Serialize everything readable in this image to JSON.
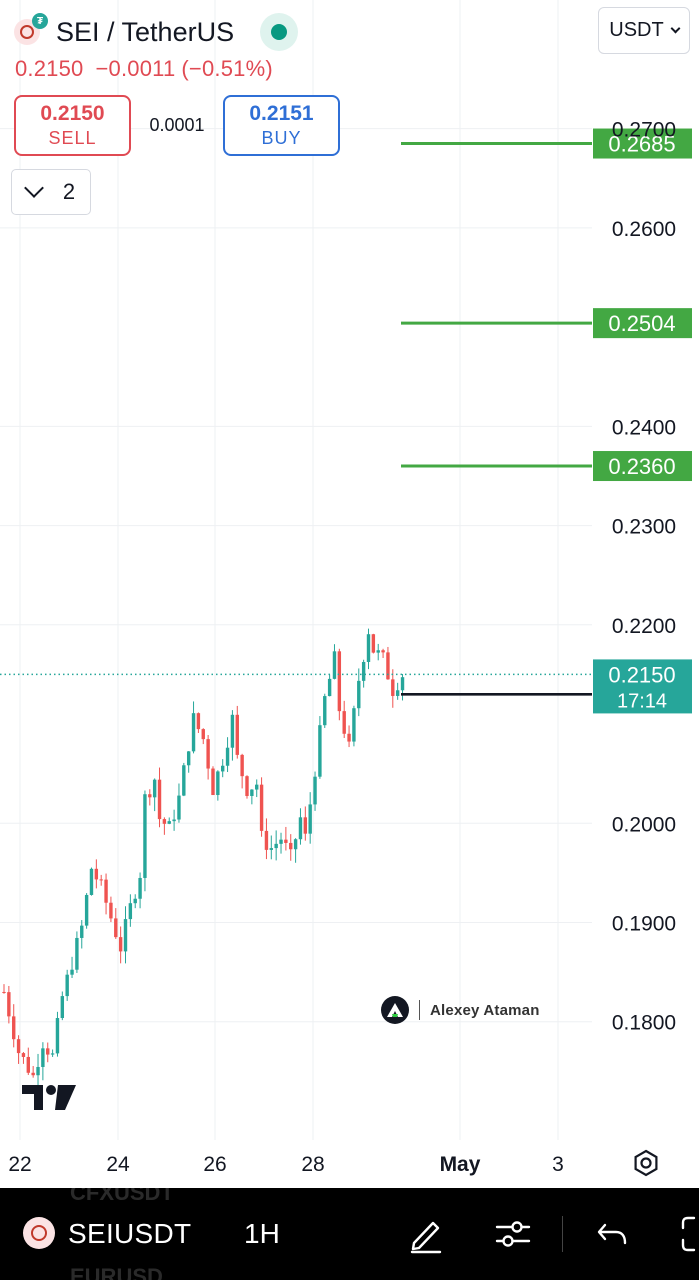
{
  "header": {
    "symbol_title": "SEI / TetherUS",
    "last_price": "0.2150",
    "change": "−0.0011",
    "change_pct": "(−0.51%)",
    "market_status": "open"
  },
  "trade": {
    "sell_price": "0.2150",
    "sell_label": "SELL",
    "spread": "0.0001",
    "buy_price": "0.2151",
    "buy_label": "BUY"
  },
  "indicators_toggle": {
    "count": "2"
  },
  "currency_selector": {
    "value": "USDT"
  },
  "watermark": {
    "author": "Alexey Ataman"
  },
  "chart_data": {
    "type": "candlestick",
    "x_tick_labels": [
      "22",
      "24",
      "26",
      "28",
      "May",
      "3"
    ],
    "y_tick_labels": [
      "0.2700",
      "0.2600",
      "0.2400",
      "0.2300",
      "0.2200",
      "0.2000",
      "0.1900",
      "0.1800"
    ],
    "ylim": [
      0.1705,
      0.2747
    ],
    "current_price_label": {
      "price": "0.2150",
      "countdown": "17:14"
    },
    "horizontal_levels": [
      {
        "price": 0.2685,
        "label": "0.2685",
        "color": "#43a843"
      },
      {
        "price": 0.2504,
        "label": "0.2504",
        "color": "#43a843"
      },
      {
        "price": 0.236,
        "label": "0.2360",
        "color": "#43a843"
      },
      {
        "price": 0.213,
        "label": "0.2130",
        "color": "#131722"
      }
    ],
    "colors": {
      "up": "#26a69a",
      "down": "#ef5350",
      "current": "#26a69a"
    },
    "price_path": [
      [
        0,
        0.183
      ],
      [
        3,
        0.177
      ],
      [
        6,
        0.1745
      ],
      [
        8,
        0.178
      ],
      [
        10,
        0.1765
      ],
      [
        12,
        0.1825
      ],
      [
        14,
        0.186
      ],
      [
        16,
        0.1895
      ],
      [
        18,
        0.1955
      ],
      [
        20,
        0.1935
      ],
      [
        22,
        0.1905
      ],
      [
        24,
        0.1875
      ],
      [
        26,
        0.1915
      ],
      [
        28,
        0.195
      ],
      [
        29,
        0.2025
      ],
      [
        31,
        0.2045
      ],
      [
        32,
        0.2005
      ],
      [
        34,
        0.1995
      ],
      [
        36,
        0.2025
      ],
      [
        38,
        0.208
      ],
      [
        39,
        0.2105
      ],
      [
        41,
        0.2085
      ],
      [
        43,
        0.2035
      ],
      [
        45,
        0.2065
      ],
      [
        47,
        0.2105
      ],
      [
        48,
        0.2065
      ],
      [
        50,
        0.2035
      ],
      [
        52,
        0.204
      ],
      [
        53,
        0.1985
      ],
      [
        55,
        0.1975
      ],
      [
        57,
        0.1985
      ],
      [
        59,
        0.1965
      ],
      [
        61,
        0.2005
      ],
      [
        62,
        0.1985
      ],
      [
        64,
        0.2055
      ],
      [
        66,
        0.2125
      ],
      [
        68,
        0.2165
      ],
      [
        69,
        0.2115
      ],
      [
        71,
        0.2075
      ],
      [
        73,
        0.2145
      ],
      [
        75,
        0.2195
      ],
      [
        76,
        0.2175
      ],
      [
        78,
        0.2165
      ],
      [
        80,
        0.2135
      ],
      [
        82,
        0.215
      ]
    ]
  },
  "bottom_bar": {
    "symbol": "SEIUSDT",
    "interval": "1H",
    "ghost_top": "CFXUSDT",
    "ghost_bottom": "EURUSD"
  }
}
